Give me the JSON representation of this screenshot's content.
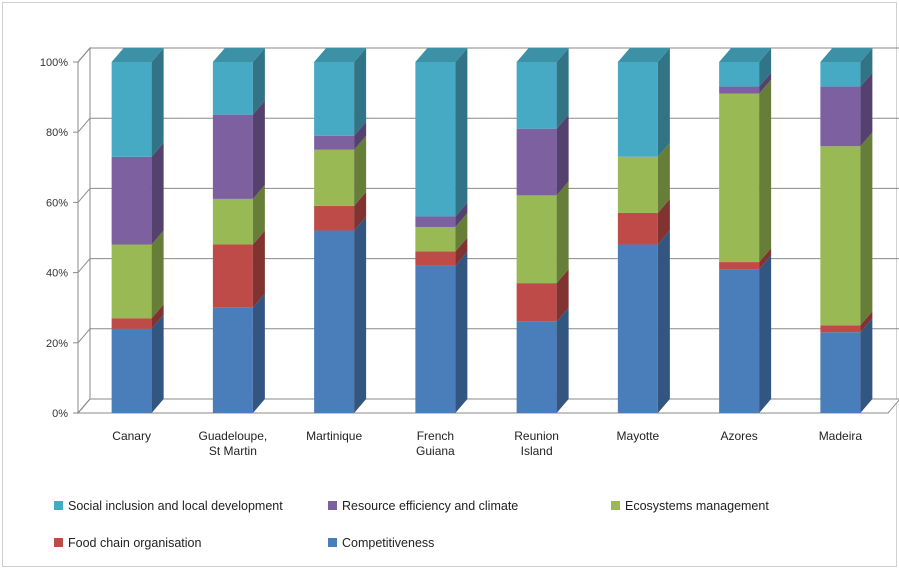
{
  "chart_data": {
    "type": "bar",
    "stacked": true,
    "percent": true,
    "three_d": true,
    "categories": [
      [
        "Canary"
      ],
      [
        "Guadeloupe,",
        "St Martin"
      ],
      [
        "Martinique"
      ],
      [
        "French",
        "Guiana"
      ],
      [
        "Reunion",
        "Island"
      ],
      [
        "Mayotte"
      ],
      [
        "Azores"
      ],
      [
        "Madeira"
      ]
    ],
    "series": [
      {
        "name": "Competitiveness",
        "color": "#4a7ebb",
        "values": [
          24,
          30,
          52,
          42,
          26,
          48,
          41,
          23
        ]
      },
      {
        "name": "Food chain organisation",
        "color": "#be4b48",
        "values": [
          3,
          18,
          7,
          4,
          11,
          9,
          2,
          2
        ]
      },
      {
        "name": "Ecosystems management",
        "color": "#98b954",
        "values": [
          21,
          13,
          16,
          7,
          25,
          16,
          48,
          51
        ]
      },
      {
        "name": "Resource efficiency and climate",
        "color": "#7d60a0",
        "values": [
          25,
          24,
          4,
          3,
          19,
          0,
          2,
          17
        ]
      },
      {
        "name": "Social inclusion and local development",
        "color": "#46aac5",
        "values": [
          27,
          15,
          21,
          44,
          19,
          27,
          7,
          7
        ]
      }
    ],
    "y_ticks": [
      "0%",
      "20%",
      "40%",
      "60%",
      "80%",
      "100%"
    ],
    "ylim": [
      0,
      100
    ],
    "grid": true,
    "legend": {
      "placement": "bottom",
      "rows": [
        [
          "Social inclusion and local development",
          "Resource efficiency and climate",
          "Ecosystems management"
        ],
        [
          "Food chain organisation",
          "Competitiveness"
        ]
      ]
    }
  }
}
